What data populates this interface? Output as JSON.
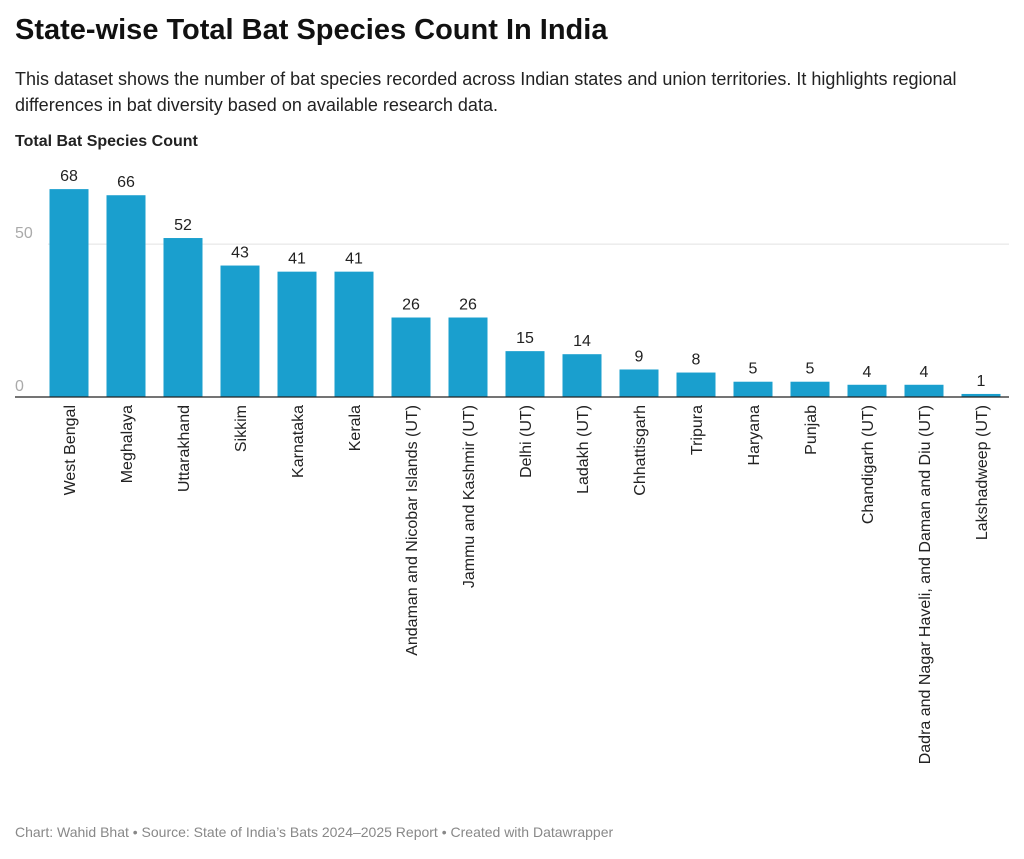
{
  "chart_data": {
    "type": "bar",
    "title": "State-wise Total Bat Species Count In India",
    "subtitle": "This dataset shows the number of bat species recorded across Indian states and union territories. It highlights regional differences in bat diversity based on available research data.",
    "y_label": "Total Bat Species Count",
    "footer": "Chart: Wahid Bhat • Source: State of India’s Bats 2024–2025 Report • Created with Datawrapper",
    "categories": [
      "West Bengal",
      "Meghalaya",
      "Uttarakhand",
      "Sikkim",
      "Karnataka",
      "Kerala",
      "Andaman and Nicobar Islands (UT)",
      "Jammu and Kashmir (UT)",
      "Delhi (UT)",
      "Ladakh (UT)",
      "Chhattisgarh",
      "Tripura",
      "Haryana",
      "Punjab",
      "Chandigarh (UT)",
      "Dadra and Nagar Haveli, and Daman and Diu (UT)",
      "Lakshadweep (UT)"
    ],
    "values": [
      68,
      66,
      52,
      43,
      41,
      41,
      26,
      26,
      15,
      14,
      9,
      8,
      5,
      5,
      4,
      4,
      1
    ],
    "color": "#1a9fce",
    "ylim": [
      0,
      70
    ],
    "yticks": [
      0,
      50
    ],
    "grid": true
  }
}
